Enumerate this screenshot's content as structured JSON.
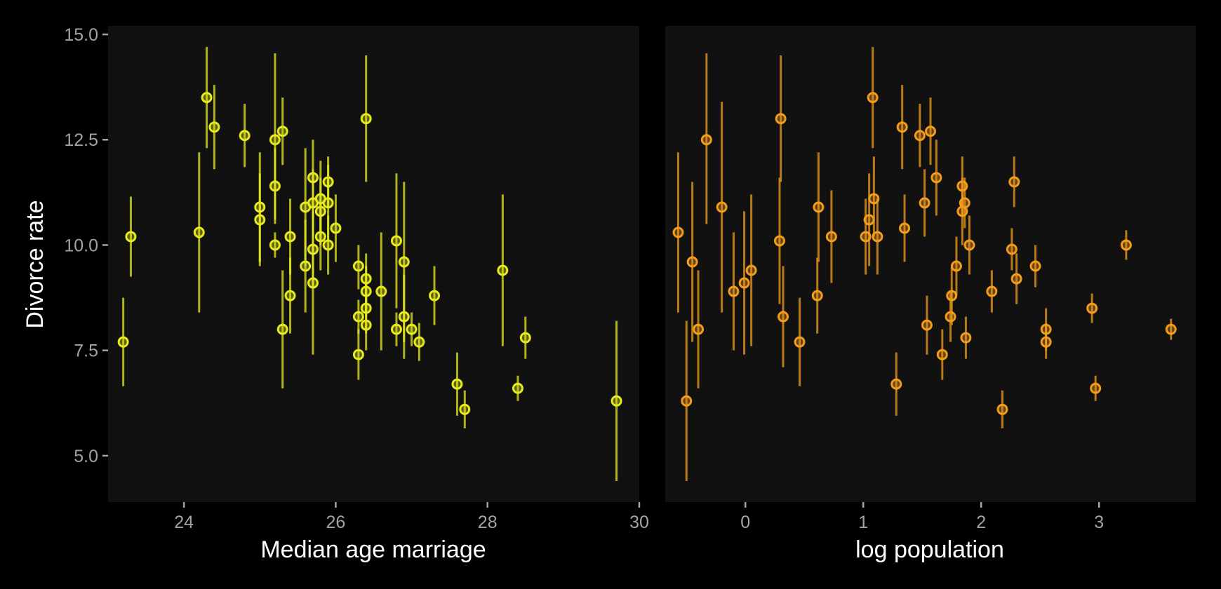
{
  "chart_data": [
    {
      "type": "scatter",
      "xlabel": "Median age marriage",
      "ylabel": "Divorce rate",
      "xlim": [
        23,
        30
      ],
      "ylim": [
        3.9,
        15.2
      ],
      "xticks": [
        24,
        26,
        28,
        30
      ],
      "yticks": [
        5.0,
        7.5,
        10.0,
        12.5,
        15.0
      ],
      "ytick_labels": [
        "5.0",
        "7.5",
        "10.0",
        "12.5",
        "15.0"
      ],
      "grid": false,
      "colors": {
        "point": "#e6ea1d",
        "panel": "#111111",
        "background": "#000000"
      },
      "points": [
        {
          "x": 23.2,
          "y": 7.7,
          "lo": 6.65,
          "hi": 8.75
        },
        {
          "x": 23.3,
          "y": 10.2,
          "lo": 9.25,
          "hi": 11.15
        },
        {
          "x": 24.2,
          "y": 10.3,
          "lo": 8.4,
          "hi": 12.2
        },
        {
          "x": 24.3,
          "y": 13.5,
          "lo": 12.3,
          "hi": 14.7
        },
        {
          "x": 24.4,
          "y": 12.8,
          "lo": 11.8,
          "hi": 13.8
        },
        {
          "x": 24.8,
          "y": 12.6,
          "lo": 11.85,
          "hi": 13.35
        },
        {
          "x": 25.0,
          "y": 10.9,
          "lo": 9.6,
          "hi": 12.2
        },
        {
          "x": 25.0,
          "y": 10.6,
          "lo": 9.5,
          "hi": 11.7
        },
        {
          "x": 25.2,
          "y": 12.5,
          "lo": 10.6,
          "hi": 14.55
        },
        {
          "x": 25.2,
          "y": 11.4,
          "lo": 10.5,
          "hi": 12.3
        },
        {
          "x": 25.2,
          "y": 10.0,
          "lo": 9.7,
          "hi": 10.3
        },
        {
          "x": 25.3,
          "y": 12.7,
          "lo": 11.9,
          "hi": 13.5
        },
        {
          "x": 25.3,
          "y": 8.0,
          "lo": 6.6,
          "hi": 9.4
        },
        {
          "x": 25.4,
          "y": 10.2,
          "lo": 9.3,
          "hi": 11.1
        },
        {
          "x": 25.4,
          "y": 8.8,
          "lo": 7.9,
          "hi": 9.7
        },
        {
          "x": 25.6,
          "y": 10.9,
          "lo": 9.5,
          "hi": 12.3
        },
        {
          "x": 25.6,
          "y": 9.5,
          "lo": 8.4,
          "hi": 10.6
        },
        {
          "x": 25.7,
          "y": 11.6,
          "lo": 10.7,
          "hi": 12.5
        },
        {
          "x": 25.7,
          "y": 11.0,
          "lo": 10.2,
          "hi": 11.8
        },
        {
          "x": 25.7,
          "y": 9.9,
          "lo": 9.0,
          "hi": 10.8
        },
        {
          "x": 25.7,
          "y": 9.1,
          "lo": 7.4,
          "hi": 10.8
        },
        {
          "x": 25.8,
          "y": 11.1,
          "lo": 10.2,
          "hi": 12.0
        },
        {
          "x": 25.8,
          "y": 10.8,
          "lo": 10.0,
          "hi": 11.6
        },
        {
          "x": 25.8,
          "y": 10.2,
          "lo": 9.4,
          "hi": 11.0
        },
        {
          "x": 25.9,
          "y": 11.5,
          "lo": 10.9,
          "hi": 12.1
        },
        {
          "x": 25.9,
          "y": 11.0,
          "lo": 10.1,
          "hi": 11.9
        },
        {
          "x": 25.9,
          "y": 10.0,
          "lo": 9.3,
          "hi": 10.7
        },
        {
          "x": 26.0,
          "y": 10.4,
          "lo": 9.6,
          "hi": 11.2
        },
        {
          "x": 26.3,
          "y": 9.5,
          "lo": 8.95,
          "hi": 10.0
        },
        {
          "x": 26.3,
          "y": 8.3,
          "lo": 7.9,
          "hi": 8.7
        },
        {
          "x": 26.3,
          "y": 7.4,
          "lo": 6.8,
          "hi": 8.0
        },
        {
          "x": 26.4,
          "y": 13.0,
          "lo": 11.5,
          "hi": 14.5
        },
        {
          "x": 26.4,
          "y": 9.2,
          "lo": 8.6,
          "hi": 9.8
        },
        {
          "x": 26.4,
          "y": 8.9,
          "lo": 8.3,
          "hi": 9.5
        },
        {
          "x": 26.4,
          "y": 8.5,
          "lo": 7.9,
          "hi": 9.1
        },
        {
          "x": 26.4,
          "y": 8.1,
          "lo": 7.5,
          "hi": 8.7
        },
        {
          "x": 26.6,
          "y": 8.9,
          "lo": 7.5,
          "hi": 10.3
        },
        {
          "x": 26.8,
          "y": 10.1,
          "lo": 8.5,
          "hi": 11.7
        },
        {
          "x": 26.8,
          "y": 8.0,
          "lo": 7.6,
          "hi": 8.4
        },
        {
          "x": 26.9,
          "y": 9.6,
          "lo": 7.7,
          "hi": 11.5
        },
        {
          "x": 26.9,
          "y": 8.3,
          "lo": 7.3,
          "hi": 9.3
        },
        {
          "x": 27.0,
          "y": 8.0,
          "lo": 7.6,
          "hi": 8.4
        },
        {
          "x": 27.1,
          "y": 7.7,
          "lo": 7.25,
          "hi": 8.15
        },
        {
          "x": 27.3,
          "y": 8.8,
          "lo": 8.1,
          "hi": 9.5
        },
        {
          "x": 27.6,
          "y": 6.7,
          "lo": 5.95,
          "hi": 7.45
        },
        {
          "x": 27.7,
          "y": 6.1,
          "lo": 5.65,
          "hi": 6.55
        },
        {
          "x": 28.2,
          "y": 9.4,
          "lo": 7.6,
          "hi": 11.2
        },
        {
          "x": 28.4,
          "y": 6.6,
          "lo": 6.3,
          "hi": 6.9
        },
        {
          "x": 28.5,
          "y": 7.8,
          "lo": 7.3,
          "hi": 8.3
        },
        {
          "x": 29.7,
          "y": 6.3,
          "lo": 4.4,
          "hi": 8.2
        }
      ]
    },
    {
      "type": "scatter",
      "xlabel": "log population",
      "ylabel": "",
      "xlim": [
        -0.68,
        3.82
      ],
      "ylim": [
        3.9,
        15.2
      ],
      "xticks": [
        0,
        1,
        2,
        3
      ],
      "grid": false,
      "colors": {
        "point": "#f39c1a",
        "panel": "#111111",
        "background": "#000000"
      },
      "points": [
        {
          "x": -0.57,
          "y": 10.3,
          "lo": 8.4,
          "hi": 12.2
        },
        {
          "x": -0.5,
          "y": 6.3,
          "lo": 4.4,
          "hi": 8.2
        },
        {
          "x": -0.45,
          "y": 9.6,
          "lo": 7.7,
          "hi": 11.5
        },
        {
          "x": -0.4,
          "y": 8.0,
          "lo": 6.6,
          "hi": 9.4
        },
        {
          "x": -0.33,
          "y": 12.5,
          "lo": 10.5,
          "hi": 14.55
        },
        {
          "x": -0.2,
          "y": 10.9,
          "lo": 8.4,
          "hi": 13.4
        },
        {
          "x": -0.1,
          "y": 8.9,
          "lo": 7.5,
          "hi": 10.3
        },
        {
          "x": -0.01,
          "y": 9.1,
          "lo": 7.4,
          "hi": 10.8
        },
        {
          "x": 0.05,
          "y": 9.4,
          "lo": 7.6,
          "hi": 11.2
        },
        {
          "x": 0.29,
          "y": 10.1,
          "lo": 8.6,
          "hi": 11.6
        },
        {
          "x": 0.3,
          "y": 13.0,
          "lo": 11.5,
          "hi": 14.5
        },
        {
          "x": 0.32,
          "y": 8.3,
          "lo": 7.1,
          "hi": 9.5
        },
        {
          "x": 0.46,
          "y": 7.7,
          "lo": 6.65,
          "hi": 8.75
        },
        {
          "x": 0.62,
          "y": 10.9,
          "lo": 9.6,
          "hi": 12.2
        },
        {
          "x": 0.61,
          "y": 8.8,
          "lo": 7.9,
          "hi": 9.7
        },
        {
          "x": 0.73,
          "y": 10.2,
          "lo": 9.1,
          "hi": 11.3
        },
        {
          "x": 1.02,
          "y": 10.2,
          "lo": 9.3,
          "hi": 11.1
        },
        {
          "x": 1.05,
          "y": 10.6,
          "lo": 9.5,
          "hi": 11.7
        },
        {
          "x": 1.08,
          "y": 13.5,
          "lo": 12.3,
          "hi": 14.7
        },
        {
          "x": 1.09,
          "y": 11.1,
          "lo": 10.2,
          "hi": 12.1
        },
        {
          "x": 1.12,
          "y": 10.2,
          "lo": 9.3,
          "hi": 11.1
        },
        {
          "x": 1.28,
          "y": 6.7,
          "lo": 5.95,
          "hi": 7.45
        },
        {
          "x": 1.33,
          "y": 12.8,
          "lo": 11.8,
          "hi": 13.8
        },
        {
          "x": 1.35,
          "y": 10.4,
          "lo": 9.6,
          "hi": 11.2
        },
        {
          "x": 1.48,
          "y": 12.6,
          "lo": 11.85,
          "hi": 13.35
        },
        {
          "x": 1.52,
          "y": 11.0,
          "lo": 10.2,
          "hi": 11.8
        },
        {
          "x": 1.54,
          "y": 8.1,
          "lo": 7.4,
          "hi": 8.8
        },
        {
          "x": 1.57,
          "y": 12.7,
          "lo": 11.9,
          "hi": 13.5
        },
        {
          "x": 1.62,
          "y": 11.6,
          "lo": 10.7,
          "hi": 12.5
        },
        {
          "x": 1.67,
          "y": 7.4,
          "lo": 6.8,
          "hi": 8.0
        },
        {
          "x": 1.74,
          "y": 8.3,
          "lo": 7.7,
          "hi": 8.9
        },
        {
          "x": 1.75,
          "y": 8.8,
          "lo": 8.1,
          "hi": 9.5
        },
        {
          "x": 1.79,
          "y": 9.5,
          "lo": 8.8,
          "hi": 10.2
        },
        {
          "x": 1.84,
          "y": 11.4,
          "lo": 10.7,
          "hi": 12.1
        },
        {
          "x": 1.84,
          "y": 10.8,
          "lo": 10.0,
          "hi": 11.6
        },
        {
          "x": 1.86,
          "y": 11.0,
          "lo": 10.4,
          "hi": 11.6
        },
        {
          "x": 1.87,
          "y": 7.8,
          "lo": 7.3,
          "hi": 8.3
        },
        {
          "x": 1.9,
          "y": 10.0,
          "lo": 9.3,
          "hi": 10.7
        },
        {
          "x": 2.09,
          "y": 8.9,
          "lo": 8.4,
          "hi": 9.4
        },
        {
          "x": 2.18,
          "y": 6.1,
          "lo": 5.65,
          "hi": 6.55
        },
        {
          "x": 2.26,
          "y": 9.9,
          "lo": 9.4,
          "hi": 10.4
        },
        {
          "x": 2.28,
          "y": 11.5,
          "lo": 10.9,
          "hi": 12.1
        },
        {
          "x": 2.3,
          "y": 9.2,
          "lo": 8.6,
          "hi": 9.8
        },
        {
          "x": 2.46,
          "y": 9.5,
          "lo": 9.0,
          "hi": 10.0
        },
        {
          "x": 2.55,
          "y": 8.0,
          "lo": 7.5,
          "hi": 8.5
        },
        {
          "x": 2.55,
          "y": 7.7,
          "lo": 7.3,
          "hi": 8.1
        },
        {
          "x": 2.94,
          "y": 8.5,
          "lo": 8.15,
          "hi": 8.85
        },
        {
          "x": 2.97,
          "y": 6.6,
          "lo": 6.3,
          "hi": 6.9
        },
        {
          "x": 3.23,
          "y": 10.0,
          "lo": 9.65,
          "hi": 10.35
        },
        {
          "x": 3.61,
          "y": 8.0,
          "lo": 7.75,
          "hi": 8.25
        }
      ]
    }
  ]
}
